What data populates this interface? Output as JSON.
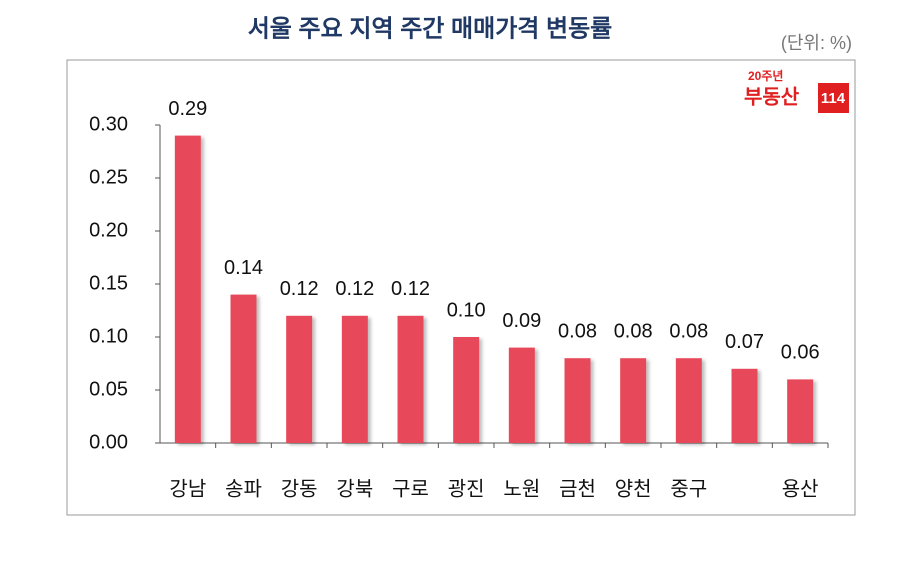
{
  "chart_data": {
    "type": "bar",
    "title": "서울 주요 지역 주간 매매가격 변동률",
    "unit": "(단위: %)",
    "logo": {
      "badge": "20주년",
      "name": "부동산",
      "number": "114"
    },
    "categories": [
      "강남",
      "송파",
      "강동",
      "강북",
      "구로",
      "광진",
      "노원",
      "금천",
      "양천",
      "중구",
      null,
      "용산"
    ],
    "values": [
      0.29,
      0.14,
      0.12,
      0.12,
      0.12,
      0.1,
      0.09,
      0.08,
      0.08,
      0.08,
      0.07,
      0.06
    ],
    "value_labels": [
      "0.29",
      "0.14",
      "0.12",
      "0.12",
      "0.12",
      "0.10",
      "0.09",
      "0.08",
      "0.08",
      "0.08",
      "0.07",
      "0.06"
    ],
    "color": "#e84a5a",
    "ylim": [
      0,
      0.3
    ],
    "yticks": [
      {
        "value": 0,
        "label": "0.00"
      },
      {
        "value": 0.05,
        "label": "0.05"
      },
      {
        "value": 0.1,
        "label": "0.10"
      },
      {
        "value": 0.15,
        "label": "0.15"
      },
      {
        "value": 0.2,
        "label": "0.20"
      },
      {
        "value": 0.25,
        "label": "0.25"
      },
      {
        "value": 0.3,
        "label": "0.30"
      }
    ],
    "grid": false
  }
}
